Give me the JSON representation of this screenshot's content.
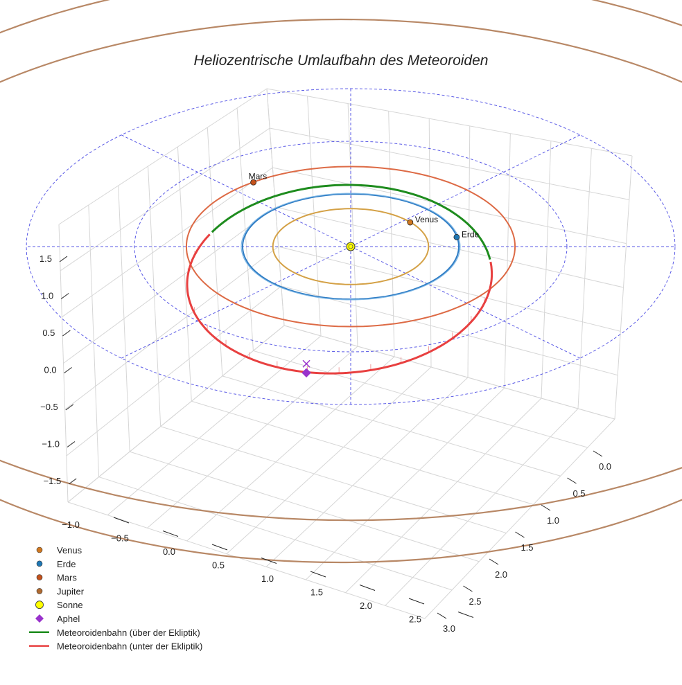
{
  "chart_data": {
    "type": "line",
    "projection": "3d",
    "title": "Heliozentrische Umlaufbahn des Meteoroiden",
    "xlabel": "",
    "ylabel": "",
    "zlabel": "",
    "x_ticks": [
      "−1.0",
      "−0.5",
      "0.0",
      "0.5",
      "1.0",
      "1.5",
      "2.0",
      "2.5"
    ],
    "y_ticks": [
      "0.0",
      "0.5",
      "1.0",
      "1.5",
      "2.0",
      "2.5",
      "3.0"
    ],
    "z_ticks": [
      "1.5",
      "1.0",
      "0.5",
      "0.0",
      "−0.5",
      "−1.0",
      "−1.5"
    ],
    "grid": true,
    "legend_position": "bottom-left",
    "orbits_au": [
      {
        "name": "Venus",
        "radius": 0.72,
        "color": "#d4a146"
      },
      {
        "name": "Erde",
        "radius": 1.0,
        "color": "#2e7cc4"
      },
      {
        "name": "Mars",
        "radius": 1.52,
        "color": "#dd6a45"
      },
      {
        "name": "Jupiter",
        "radius": 5.2,
        "color": "#b88866"
      }
    ],
    "ecliptic_reference_circles_au": [
      1.0,
      2.0,
      3.0
    ],
    "sun": {
      "label": "Sonne",
      "x": 0,
      "y": 0,
      "z": 0,
      "color": "#ffff00"
    },
    "planet_positions": [
      {
        "name": "Venus",
        "label": "Venus",
        "x": 0.55,
        "y": 0.46,
        "z": 0,
        "color": "#d07820"
      },
      {
        "name": "Erde",
        "label": "Erde",
        "x": 0.98,
        "y": 0.18,
        "z": 0,
        "color": "#1f77b4"
      },
      {
        "name": "Mars",
        "label": "Mars",
        "x": -0.9,
        "y": 1.22,
        "z": 0,
        "color": "#c4521c"
      }
    ],
    "meteoroid_orbit": {
      "semi_major_axis_au": 1.5,
      "eccentricity": 0.35,
      "above_color": "#1e8c1e",
      "below_color": "#e84040"
    },
    "aphel": {
      "label": "Aphel",
      "x": -0.41,
      "y": -2.0,
      "z": -0.28,
      "color": "#9932cc"
    },
    "legend": [
      {
        "label": "Venus",
        "marker": "dot",
        "color": "#d07820"
      },
      {
        "label": "Erde",
        "marker": "dot",
        "color": "#1f77b4"
      },
      {
        "label": "Mars",
        "marker": "dot",
        "color": "#c4521c"
      },
      {
        "label": "Jupiter",
        "marker": "dot",
        "color": "#b06a30"
      },
      {
        "label": "Sonne",
        "marker": "circle",
        "color": "#ffff00"
      },
      {
        "label": "Aphel",
        "marker": "diamond",
        "color": "#9932cc"
      },
      {
        "label": "Meteoroidenbahn (über der Ekliptik)",
        "marker": "line",
        "color": "#1e8c1e"
      },
      {
        "label": "Meteoroidenbahn (unter der Ekliptik)",
        "marker": "line",
        "color": "#e84040"
      }
    ]
  }
}
